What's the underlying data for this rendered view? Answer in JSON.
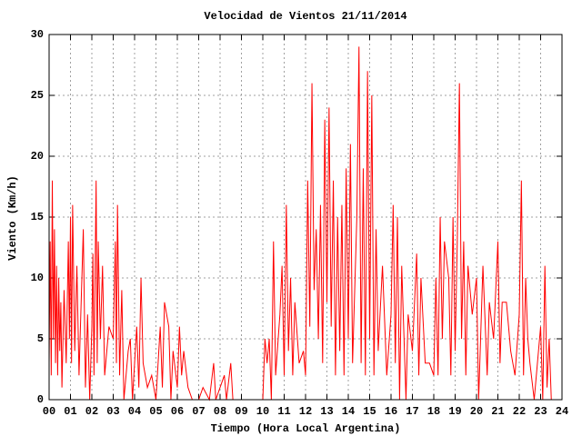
{
  "chart_data": {
    "type": "line",
    "title": "Velocidad de Vientos 21/11/2014",
    "x_label": "Tiempo (Hora Local Argentina)",
    "y_label": "Viento (Km/h)",
    "x": [
      0.0,
      0.05,
      0.1,
      0.15,
      0.2,
      0.25,
      0.3,
      0.35,
      0.4,
      0.45,
      0.5,
      0.55,
      0.6,
      0.7,
      0.8,
      0.9,
      0.95,
      1.0,
      1.05,
      1.1,
      1.2,
      1.3,
      1.4,
      1.5,
      1.6,
      1.7,
      1.8,
      1.9,
      2.0,
      2.05,
      2.1,
      2.2,
      2.25,
      2.3,
      2.4,
      2.5,
      2.6,
      2.8,
      3.0,
      3.1,
      3.15,
      3.2,
      3.3,
      3.4,
      3.5,
      3.7,
      3.8,
      3.9,
      4.0,
      4.1,
      4.2,
      4.3,
      4.4,
      4.6,
      4.8,
      5.0,
      5.1,
      5.2,
      5.3,
      5.4,
      5.6,
      5.7,
      5.8,
      6.0,
      6.1,
      6.2,
      6.3,
      6.5,
      6.7,
      7.0,
      7.2,
      7.5,
      7.7,
      7.8,
      8.2,
      8.3,
      8.5,
      8.6,
      9.0,
      9.5,
      10.0,
      10.1,
      10.2,
      10.3,
      10.4,
      10.5,
      10.6,
      10.8,
      10.9,
      11.0,
      11.1,
      11.2,
      11.3,
      11.4,
      11.5,
      11.7,
      11.9,
      12.0,
      12.1,
      12.2,
      12.3,
      12.4,
      12.5,
      12.6,
      12.7,
      12.8,
      12.9,
      13.0,
      13.1,
      13.2,
      13.3,
      13.4,
      13.5,
      13.6,
      13.7,
      13.8,
      13.9,
      14.0,
      14.1,
      14.2,
      14.4,
      14.5,
      14.6,
      14.7,
      14.8,
      14.9,
      15.0,
      15.1,
      15.2,
      15.3,
      15.4,
      15.6,
      15.8,
      16.0,
      16.1,
      16.2,
      16.3,
      16.4,
      16.5,
      16.7,
      16.8,
      17.0,
      17.2,
      17.3,
      17.4,
      17.6,
      17.8,
      18.0,
      18.1,
      18.2,
      18.3,
      18.4,
      18.5,
      18.7,
      18.8,
      18.9,
      19.0,
      19.1,
      19.2,
      19.3,
      19.4,
      19.5,
      19.6,
      19.8,
      20.0,
      20.1,
      20.3,
      20.5,
      20.6,
      20.8,
      21.0,
      21.1,
      21.2,
      21.4,
      21.6,
      21.8,
      22.0,
      22.1,
      22.2,
      22.3,
      22.4,
      22.5,
      22.7,
      23.0,
      23.1,
      23.2,
      23.3,
      23.4,
      23.5
    ],
    "values": [
      3,
      13,
      2,
      18,
      5,
      14,
      3,
      11,
      2,
      10,
      4,
      8,
      1,
      9,
      3,
      13,
      5,
      15,
      3,
      16,
      4,
      11,
      2,
      8,
      14,
      1,
      7,
      0,
      6,
      12,
      2,
      18,
      3,
      13,
      5,
      11,
      2,
      6,
      5,
      13,
      3,
      16,
      2,
      9,
      0,
      4,
      5,
      0,
      3,
      6,
      1,
      10,
      3,
      1,
      2,
      0,
      3,
      6,
      1,
      8,
      6,
      0,
      4,
      1,
      6,
      2,
      4,
      1,
      0,
      0,
      1,
      0,
      3,
      0,
      2,
      0,
      3,
      0,
      0,
      0,
      0,
      5,
      3,
      5,
      0,
      13,
      2,
      7,
      11,
      2,
      16,
      4,
      10,
      2,
      8,
      3,
      4,
      2,
      18,
      6,
      26,
      9,
      14,
      5,
      16,
      3,
      23,
      8,
      24,
      6,
      18,
      2,
      15,
      4,
      16,
      2,
      19,
      5,
      21,
      3,
      15,
      29,
      3,
      19,
      2,
      27,
      5,
      25,
      2,
      14,
      4,
      11,
      2,
      7,
      16,
      3,
      15,
      0,
      11,
      0,
      7,
      4,
      12,
      2,
      10,
      3,
      3,
      2,
      10,
      2,
      15,
      5,
      13,
      10,
      2,
      15,
      4,
      13,
      26,
      5,
      13,
      2,
      11,
      7,
      10,
      0,
      11,
      2,
      8,
      5,
      13,
      3,
      8,
      8,
      4,
      2,
      7,
      18,
      2,
      10,
      5,
      3,
      0,
      6,
      0,
      11,
      1,
      5,
      0
    ],
    "color": "#ff0000",
    "xlim": [
      0,
      24
    ],
    "xticks": [
      {
        "value": 0,
        "label": "00"
      },
      {
        "value": 1,
        "label": "01"
      },
      {
        "value": 2,
        "label": "02"
      },
      {
        "value": 3,
        "label": "03"
      },
      {
        "value": 4,
        "label": "04"
      },
      {
        "value": 5,
        "label": "05"
      },
      {
        "value": 6,
        "label": "06"
      },
      {
        "value": 7,
        "label": "07"
      },
      {
        "value": 8,
        "label": "08"
      },
      {
        "value": 9,
        "label": "09"
      },
      10,
      11,
      12,
      13,
      14,
      15,
      16,
      17,
      18,
      19,
      20,
      21,
      22,
      23,
      24
    ],
    "ylim": [
      0,
      30
    ],
    "yticks": [
      0,
      5,
      10,
      15,
      20,
      25,
      30
    ],
    "grid": true
  }
}
